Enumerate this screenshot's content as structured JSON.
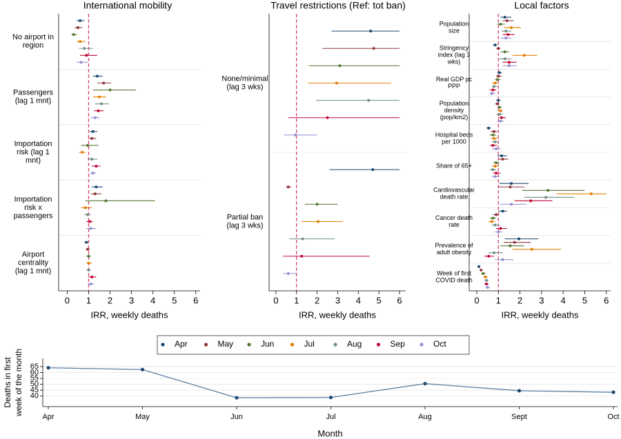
{
  "legend": [
    {
      "name": "Apr",
      "color": "#1a476f"
    },
    {
      "name": "May",
      "color": "#90353b"
    },
    {
      "name": "Jun",
      "color": "#55752f"
    },
    {
      "name": "Jul",
      "color": "#e37e00"
    },
    {
      "name": "Aug",
      "color": "#6e8e84"
    },
    {
      "name": "Sep",
      "color": "#c10534"
    },
    {
      "name": "Oct",
      "color": "#938dd2"
    }
  ],
  "chart_data": [
    {
      "type": "forest",
      "title": "International mobility",
      "xlabel": "IRR, weekly deaths",
      "xlim": [
        -0.4,
        6.2
      ],
      "xticks": [
        0,
        1,
        2,
        3,
        4,
        5,
        6
      ],
      "reference": 1,
      "categories": [
        [
          "No airport in",
          "region"
        ],
        [
          "Passengers",
          "(lag 1 mnt)"
        ],
        [
          "Importation",
          "risk (lag 1",
          "mnt)"
        ],
        [
          "Importation",
          "risk x",
          "passengers"
        ],
        [
          "Airport",
          "centrality",
          "(lag 1 mnt)"
        ]
      ],
      "series": [
        {
          "values": [
            0.6,
            1.4,
            1.2,
            1.35,
            0.9
          ],
          "lower": [
            0.45,
            1.2,
            1.05,
            1.15,
            0.8
          ],
          "upper": [
            0.8,
            1.65,
            1.4,
            1.65,
            0.97
          ]
        },
        {
          "values": [
            0.5,
            1.7,
            1.15,
            1.3,
            0.95
          ],
          "lower": [
            0.35,
            1.4,
            1.0,
            1.1,
            0.88
          ],
          "upper": [
            0.7,
            2.05,
            1.35,
            1.6,
            1.05
          ]
        },
        {
          "values": [
            0.3,
            2.0,
            0.95,
            1.8,
            1.0
          ],
          "lower": [
            0.2,
            1.2,
            0.65,
            0.85,
            0.9
          ],
          "upper": [
            0.45,
            3.2,
            1.45,
            4.1,
            1.1
          ]
        },
        {
          "values": [
            0.6,
            1.5,
            0.7,
            0.85,
            1.0
          ],
          "lower": [
            0.45,
            1.2,
            0.55,
            0.65,
            0.9
          ],
          "upper": [
            0.85,
            1.8,
            0.85,
            1.15,
            1.15
          ]
        },
        {
          "values": [
            0.8,
            1.6,
            1.15,
            0.95,
            1.0
          ],
          "lower": [
            0.55,
            1.3,
            0.95,
            0.8,
            0.9
          ],
          "upper": [
            1.2,
            1.95,
            1.4,
            1.1,
            1.1
          ]
        },
        {
          "values": [
            0.9,
            1.45,
            1.35,
            1.05,
            1.15
          ],
          "lower": [
            0.6,
            1.25,
            1.15,
            0.9,
            1.0
          ],
          "upper": [
            1.4,
            1.7,
            1.55,
            1.2,
            1.35
          ]
        },
        {
          "values": [
            0.65,
            1.3,
            1.2,
            1.1,
            1.1
          ],
          "lower": [
            0.45,
            1.1,
            1.05,
            0.9,
            0.95
          ],
          "upper": [
            0.95,
            1.5,
            1.35,
            1.35,
            1.25
          ]
        }
      ]
    },
    {
      "type": "forest",
      "title": "Travel restrictions (Ref: tot ban)",
      "xlabel": "IRR, weekly deaths",
      "xlim": [
        -0.33,
        6.3
      ],
      "xticks": [
        0,
        1,
        2,
        3,
        4,
        5,
        6
      ],
      "reference": 1,
      "categories": [
        [
          "None/minimal",
          "(lag 3 wks)"
        ],
        [
          "Partial ban",
          "(lag 3 wks)"
        ]
      ],
      "series": [
        {
          "values": [
            4.6,
            4.7
          ],
          "lower": [
            2.7,
            2.6
          ],
          "upper": [
            6,
            6
          ]
        },
        {
          "values": [
            4.75,
            0.6
          ],
          "lower": [
            2.25,
            0.5
          ],
          "upper": [
            6,
            0.75
          ]
        },
        {
          "values": [
            3.1,
            2.0
          ],
          "lower": [
            1.6,
            1.4
          ],
          "upper": [
            6,
            3.0
          ]
        },
        {
          "values": [
            2.95,
            2.05
          ],
          "lower": [
            1.55,
            1.25
          ],
          "upper": [
            5.6,
            3.25
          ]
        },
        {
          "values": [
            4.5,
            1.3
          ],
          "lower": [
            1.95,
            0.65
          ],
          "upper": [
            6,
            2.85
          ]
        },
        {
          "values": [
            2.5,
            1.25
          ],
          "lower": [
            0.6,
            0.35
          ],
          "upper": [
            6,
            4.55
          ]
        },
        {
          "values": [
            0.95,
            0.6
          ],
          "lower": [
            0.4,
            0.35
          ],
          "upper": [
            2.0,
            1.05
          ]
        }
      ]
    },
    {
      "type": "forest",
      "title": "Local factors",
      "xlabel": "IRR, weekly deaths",
      "xlim": [
        -0.35,
        6.2
      ],
      "xticks": [
        0,
        1,
        2,
        3,
        4,
        5,
        6
      ],
      "reference": 1,
      "categories": [
        [
          "Population",
          "size"
        ],
        [
          "Stringency",
          "index (lag 3",
          "wks)"
        ],
        [
          "Real GDP pc",
          "PPP"
        ],
        [
          "Population",
          "density",
          "(pop/km2)"
        ],
        [
          "Hospital beds",
          "per 1000"
        ],
        [
          "Share of 65+"
        ],
        [
          "Cardiovascular",
          "death rate"
        ],
        [
          "Cancer death",
          "rate"
        ],
        [
          "Prevalence of",
          "adult obesity"
        ],
        [
          "Week of first",
          "COVID death"
        ]
      ],
      "series": [
        {
          "values": [
            1.3,
            0.85,
            1.05,
            1.0,
            0.55,
            1.15,
            1.6,
            1.2,
            1.95,
            0.1
          ],
          "lower": [
            1.1,
            0.75,
            0.95,
            0.9,
            0.45,
            0.95,
            1.05,
            1.0,
            1.3,
            0.05
          ],
          "upper": [
            1.6,
            0.95,
            1.15,
            1.1,
            0.65,
            1.4,
            2.4,
            1.4,
            2.85,
            0.15
          ]
        },
        {
          "values": [
            1.4,
            1.0,
            1.0,
            0.95,
            0.8,
            1.2,
            1.55,
            0.9,
            1.75,
            0.2
          ],
          "lower": [
            1.2,
            0.9,
            0.9,
            0.85,
            0.65,
            1.0,
            1.0,
            0.75,
            1.25,
            0.15
          ],
          "upper": [
            1.7,
            1.1,
            1.15,
            1.05,
            0.95,
            1.45,
            2.2,
            1.05,
            2.5,
            0.25
          ]
        },
        {
          "values": [
            1.1,
            1.3,
            0.95,
            1.05,
            0.75,
            0.9,
            3.3,
            0.75,
            1.55,
            0.3
          ],
          "lower": [
            0.95,
            1.1,
            0.85,
            0.95,
            0.6,
            0.75,
            2.1,
            0.6,
            1.1,
            0.2
          ],
          "upper": [
            1.3,
            1.5,
            1.1,
            1.15,
            0.9,
            1.05,
            5.0,
            0.9,
            2.2,
            0.4
          ]
        },
        {
          "values": [
            1.6,
            2.2,
            0.85,
            1.1,
            0.8,
            0.85,
            5.3,
            0.7,
            2.55,
            0.4
          ],
          "lower": [
            1.25,
            1.65,
            0.7,
            1.0,
            0.65,
            0.7,
            3.7,
            0.55,
            1.65,
            0.3
          ],
          "upper": [
            2.05,
            2.8,
            1.0,
            1.2,
            1.0,
            1.0,
            6.0,
            0.85,
            3.9,
            0.5
          ]
        },
        {
          "values": [
            1.35,
            1.3,
            0.8,
            1.05,
            0.85,
            0.75,
            3.2,
            0.85,
            0.8,
            0.45
          ],
          "lower": [
            1.15,
            1.05,
            0.7,
            0.9,
            0.7,
            0.6,
            2.2,
            0.7,
            0.55,
            0.35
          ],
          "upper": [
            1.6,
            1.6,
            0.95,
            1.2,
            1.0,
            0.9,
            4.5,
            1.05,
            1.2,
            0.55
          ]
        },
        {
          "values": [
            1.45,
            1.5,
            0.75,
            1.15,
            0.75,
            0.9,
            2.5,
            1.1,
            0.55,
            0.45
          ],
          "lower": [
            1.2,
            1.2,
            0.6,
            1.0,
            0.6,
            0.75,
            1.75,
            0.9,
            0.35,
            0.35
          ],
          "upper": [
            1.75,
            1.85,
            0.9,
            1.35,
            0.95,
            1.1,
            3.5,
            1.4,
            0.8,
            0.55
          ]
        },
        {
          "values": [
            1.35,
            1.5,
            0.7,
            1.1,
            0.9,
            0.85,
            1.6,
            1.0,
            1.2,
            0.5
          ],
          "lower": [
            1.1,
            1.2,
            0.6,
            0.95,
            0.7,
            0.7,
            1.1,
            0.85,
            0.85,
            0.4
          ],
          "upper": [
            1.6,
            1.85,
            0.85,
            1.25,
            1.1,
            1.05,
            2.3,
            1.2,
            1.7,
            0.6
          ]
        }
      ]
    },
    {
      "type": "line",
      "ylabel": [
        "Deaths in first",
        "week of the month"
      ],
      "xlabel": "Month",
      "categories": [
        "Apr",
        "May",
        "Jun",
        "Jul",
        "Aug",
        "Sept",
        "Oct"
      ],
      "values": [
        64,
        62.5,
        38.5,
        38.8,
        50.5,
        44.5,
        43.2
      ],
      "color": "#5b7fa3",
      "marker_color": "#1a476f",
      "ylim": [
        31,
        72
      ],
      "yticks": [
        40,
        45,
        50,
        55,
        60,
        65
      ],
      "grid": true
    }
  ]
}
